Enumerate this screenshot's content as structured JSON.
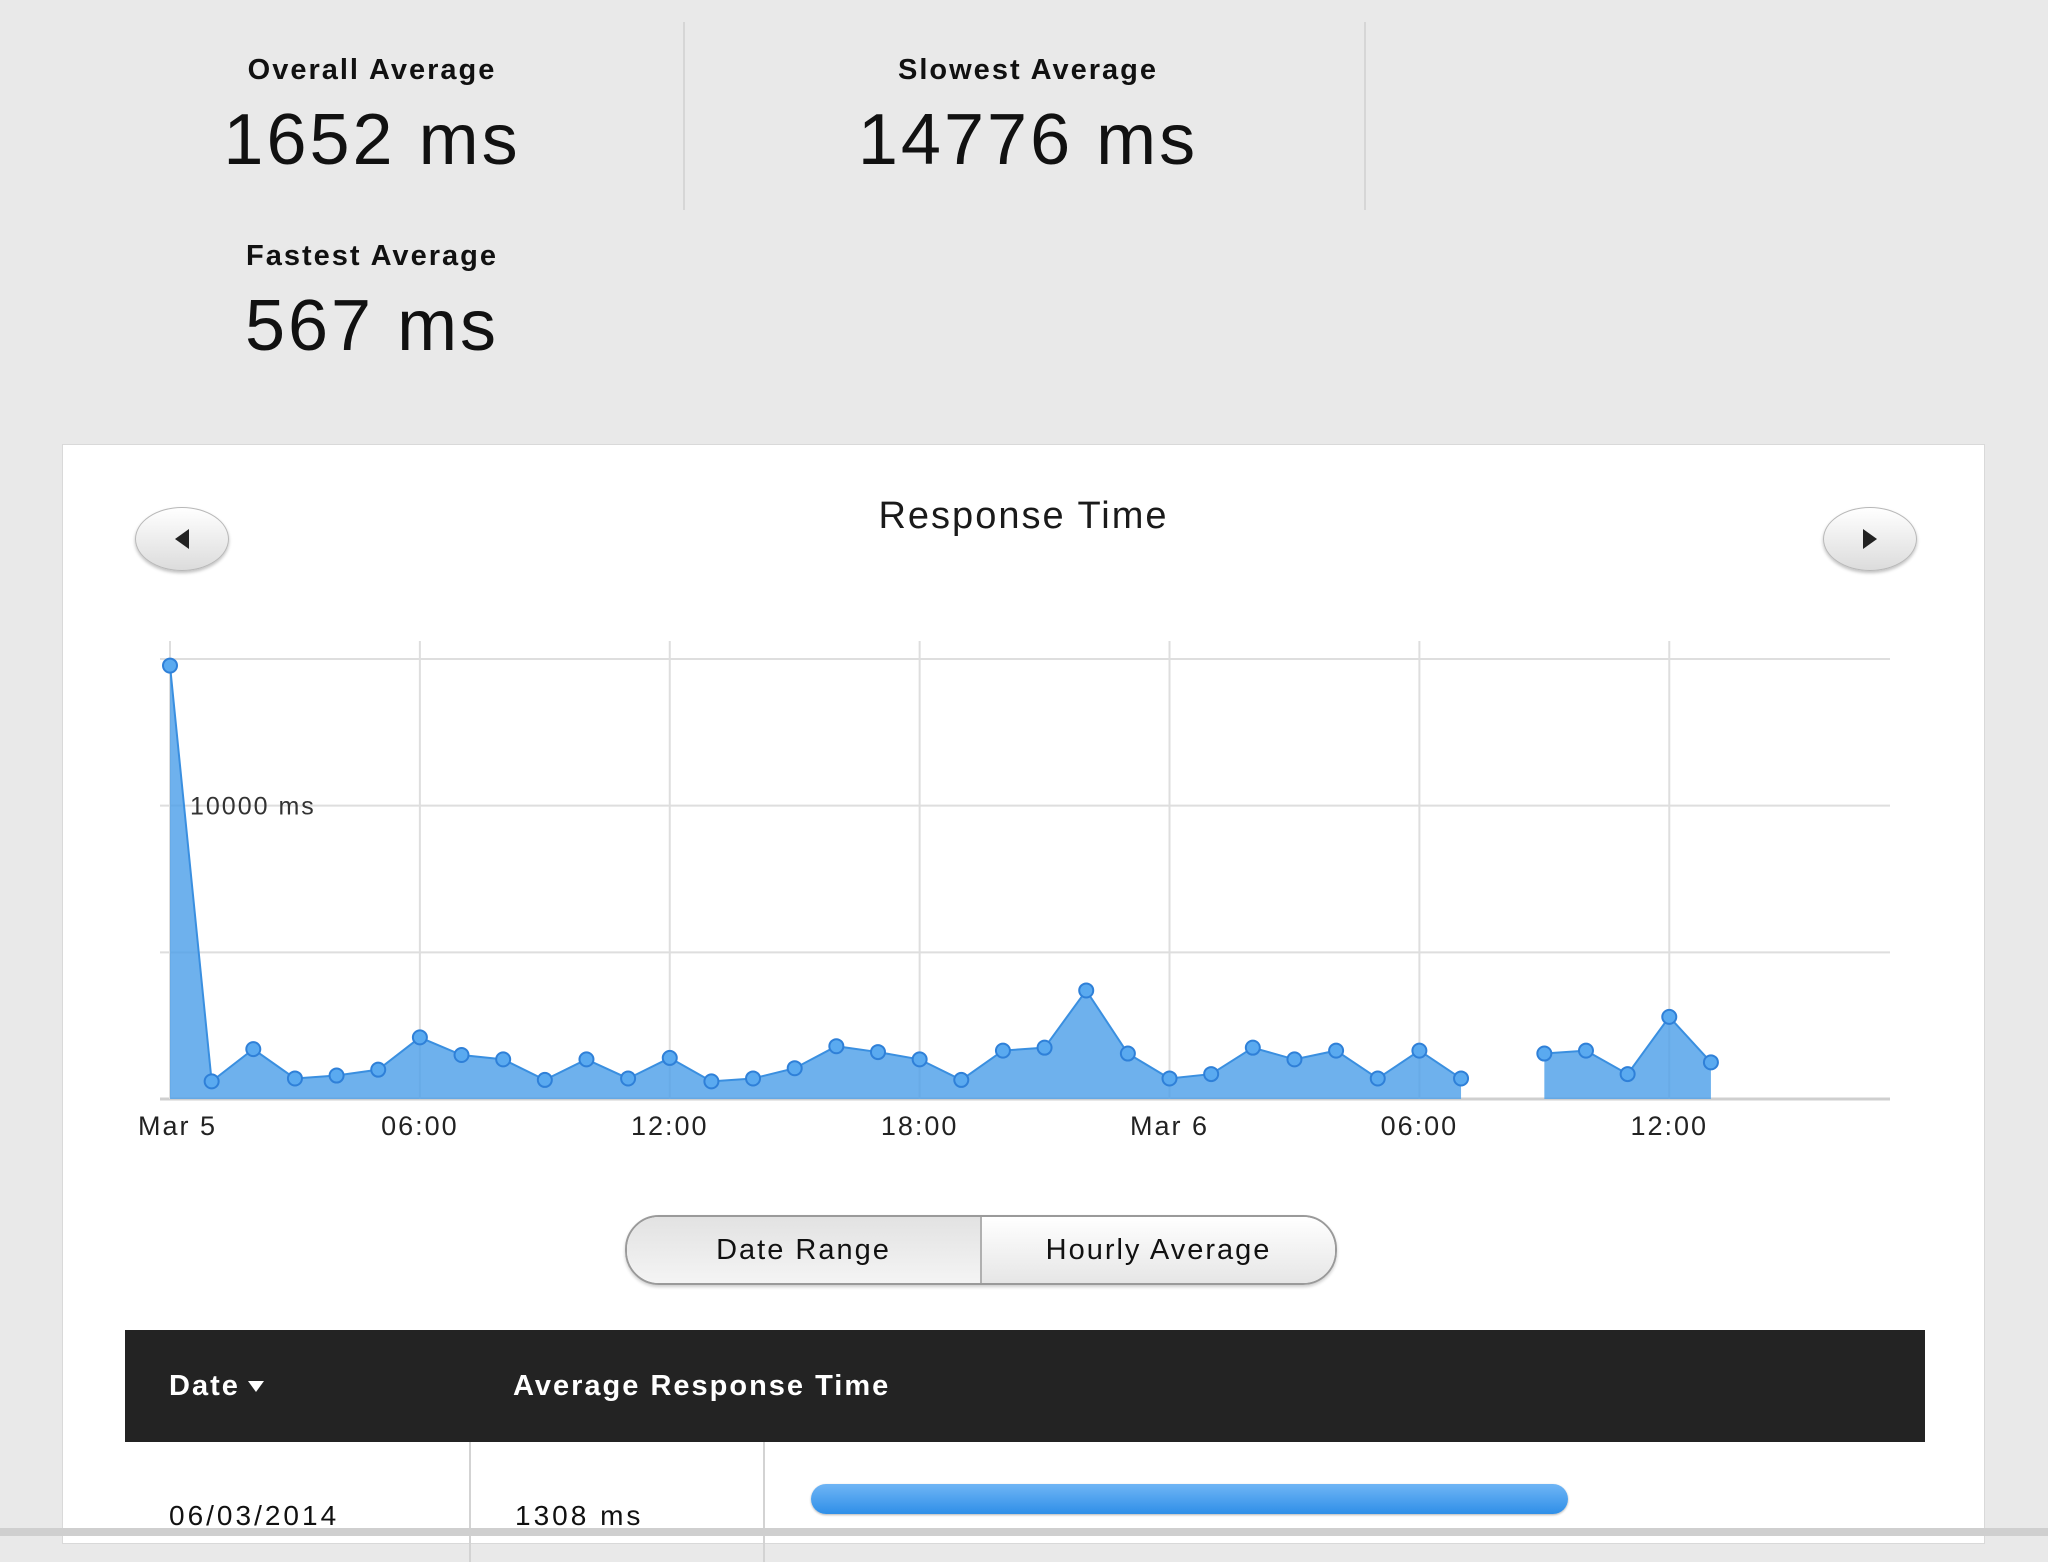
{
  "stats": {
    "overall": {
      "label": "Overall Average",
      "value": "1652 ms"
    },
    "slowest": {
      "label": "Slowest Average",
      "value": "14776 ms"
    },
    "fastest": {
      "label": "Fastest Average",
      "value": "567 ms"
    }
  },
  "chart_data": {
    "type": "area",
    "title": "Response Time",
    "xlabel": "",
    "ylabel": "",
    "x_ticks": [
      "Mar 5",
      "06:00",
      "12:00",
      "18:00",
      "Mar 6",
      "06:00",
      "12:00"
    ],
    "x_tick_hours": [
      0,
      6,
      12,
      18,
      24,
      30,
      36
    ],
    "y_tick_labels": [
      "10000 ms"
    ],
    "y_tick_values": [
      10000
    ],
    "ylim": [
      0,
      15000
    ],
    "xlim_hours": [
      0,
      41.3
    ],
    "grid": true,
    "legend": "none",
    "color": "#4a9ee8",
    "series": [
      {
        "segments": [
          [
            [
              0,
              14776
            ],
            [
              1,
              600
            ],
            [
              2,
              1700
            ],
            [
              3,
              700
            ],
            [
              4,
              800
            ],
            [
              5,
              1000
            ],
            [
              6,
              2100
            ],
            [
              7,
              1500
            ],
            [
              8,
              1350
            ],
            [
              9,
              650
            ],
            [
              10,
              1350
            ],
            [
              11,
              700
            ],
            [
              12,
              1400
            ],
            [
              13,
              600
            ],
            [
              14,
              700
            ],
            [
              15,
              1050
            ],
            [
              16,
              1800
            ],
            [
              17,
              1600
            ],
            [
              18,
              1350
            ],
            [
              19,
              650
            ],
            [
              20,
              1650
            ],
            [
              21,
              1750
            ],
            [
              22,
              3700
            ],
            [
              23,
              1550
            ],
            [
              24,
              700
            ],
            [
              25,
              850
            ],
            [
              26,
              1750
            ],
            [
              27,
              1350
            ],
            [
              28,
              1650
            ],
            [
              29,
              700
            ],
            [
              30,
              1650
            ],
            [
              31,
              700
            ]
          ],
          [
            [
              33,
              1550
            ],
            [
              34,
              1650
            ],
            [
              35,
              850
            ],
            [
              36,
              2800
            ],
            [
              37,
              1250
            ]
          ]
        ]
      }
    ]
  },
  "toggle": {
    "date_range": "Date Range",
    "hourly_average": "Hourly Average"
  },
  "table": {
    "headers": {
      "date": "Date",
      "avg": "Average Response Time"
    },
    "rows": [
      {
        "date": "06/03/2014",
        "avg": "1308 ms",
        "avg_value": 1308
      }
    ]
  }
}
